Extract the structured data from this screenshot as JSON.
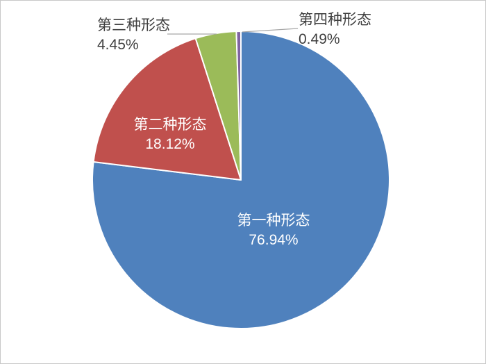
{
  "chart_data": {
    "type": "pie",
    "title": "",
    "legend": "none",
    "direction": "clockwise",
    "start_angle_deg": 0,
    "categories": [
      "第一种形态",
      "第二种形态",
      "第三种形态",
      "第四种形态"
    ],
    "values": [
      76.94,
      18.12,
      4.45,
      0.49
    ],
    "slices": [
      {
        "label": "第一种形态",
        "value": 76.94,
        "pct_label": "76.94%",
        "color": "#4f81bd",
        "label_placement": "inside"
      },
      {
        "label": "第二种形态",
        "value": 18.12,
        "pct_label": "18.12%",
        "color": "#c0504d",
        "label_placement": "inside"
      },
      {
        "label": "第三种形态",
        "value": 4.45,
        "pct_label": "4.45%",
        "color": "#9bbb59",
        "label_placement": "outside"
      },
      {
        "label": "第四种形态",
        "value": 0.49,
        "pct_label": "0.49%",
        "color": "#8064a2",
        "label_placement": "outside"
      }
    ]
  },
  "styles": {
    "background": "#ffffff",
    "frame_border": "#c8c8c8",
    "slice_separator": "#ffffff",
    "inside_label_color": "#ffffff",
    "outside_label_color": "#3f3f3f",
    "leader_line_color": "#a6a6a6"
  }
}
